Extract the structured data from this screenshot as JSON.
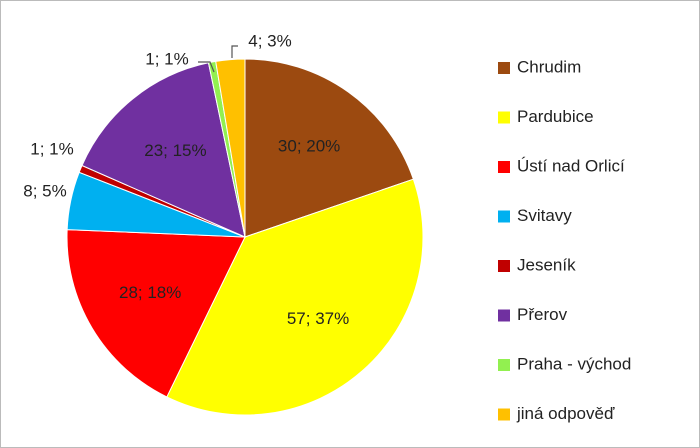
{
  "chart_data": {
    "type": "pie",
    "categories": [
      "Chrudim",
      "Pardubice",
      "Ústí nad Orlicí",
      "Svitavy",
      "Jeseník",
      "Přerov",
      "Praha - východ",
      "jiná odpověď"
    ],
    "values": [
      30,
      57,
      28,
      8,
      1,
      23,
      1,
      4
    ],
    "value_labels": [
      "30; 20%",
      "57; 37%",
      "28; 18%",
      "8; 5%",
      "1; 1%",
      "23; 15%",
      "1; 1%",
      "4; 3%"
    ],
    "colors": [
      "#9c4a10",
      "#ffff00",
      "#ff0000",
      "#00b0f0",
      "#c00000",
      "#7030a0",
      "#92f050",
      "#ffc000"
    ],
    "legend": "right"
  }
}
